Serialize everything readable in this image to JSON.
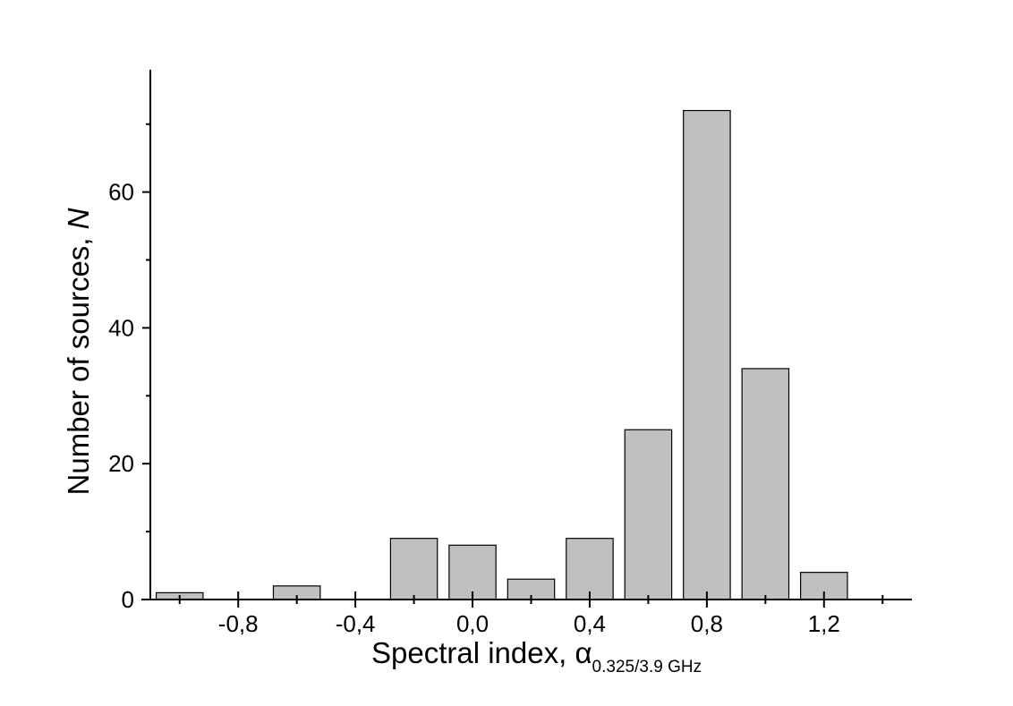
{
  "chart_data": {
    "type": "bar",
    "x": [
      -1.0,
      -0.6,
      -0.2,
      0.0,
      0.2,
      0.4,
      0.6,
      0.8,
      1.0,
      1.2
    ],
    "values": [
      1,
      2,
      9,
      8,
      3,
      9,
      25,
      72,
      34,
      4
    ],
    "bar_width": 0.16,
    "bar_color": "#c0c0c0",
    "xlim": [
      -1.1,
      1.5
    ],
    "ylim": [
      0,
      78
    ],
    "x_major_ticks": [
      -0.8,
      -0.4,
      0.0,
      0.4,
      0.8,
      1.2
    ],
    "x_tick_labels": [
      "-0,8",
      "-0,4",
      "0,0",
      "0,4",
      "0,8",
      "1,2"
    ],
    "x_minor_ticks": [
      -1.0,
      -0.6,
      -0.2,
      0.2,
      0.6,
      1.0,
      1.4
    ],
    "y_major_ticks": [
      0,
      20,
      40,
      60
    ],
    "y_tick_labels": [
      "0",
      "20",
      "40",
      "60"
    ],
    "y_minor_ticks": [
      10,
      30,
      50,
      70
    ],
    "xlabel": {
      "main": "Spectral index, ",
      "symbol": "α",
      "subscript": "0.325/3.9 GHz"
    },
    "ylabel": {
      "main": "Number of sources, ",
      "italic": "N"
    },
    "grid": false,
    "legend": "none"
  }
}
